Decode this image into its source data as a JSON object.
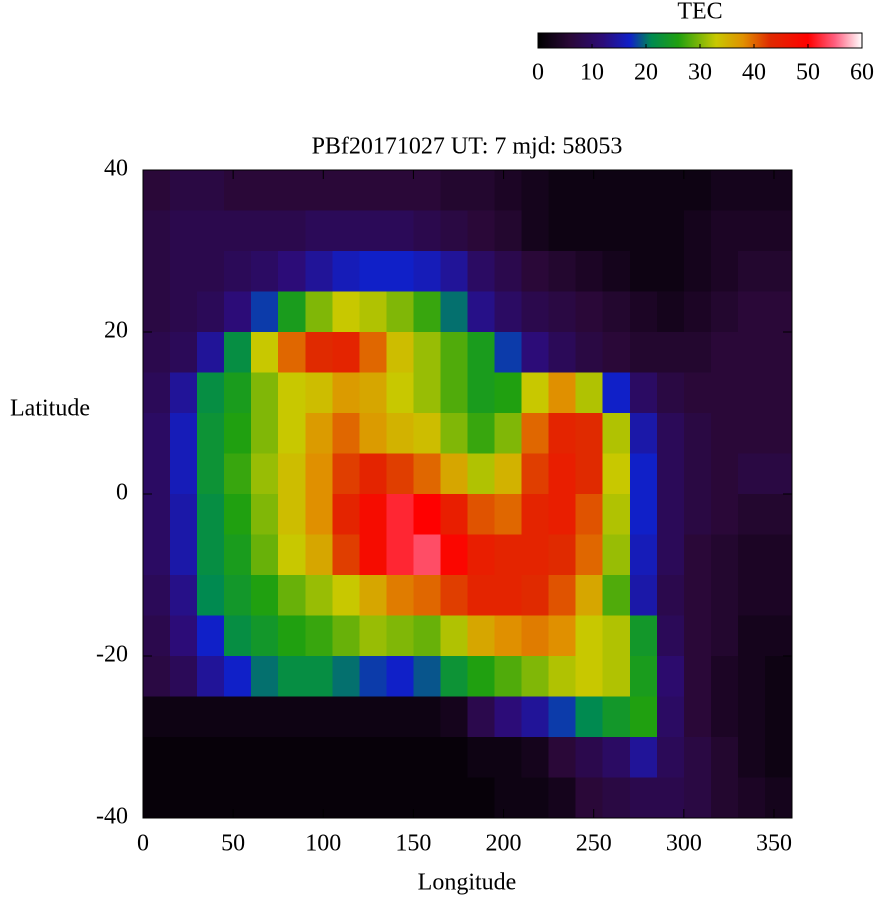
{
  "chart_data": {
    "type": "heatmap",
    "title": "PBf20171027  UT: 7  mjd: 58053",
    "xlabel": "Longitude",
    "ylabel": "Latitude",
    "colorbar_label": "TEC",
    "xlim": [
      0,
      360
    ],
    "xticks": [
      0,
      50,
      100,
      150,
      200,
      250,
      300,
      350
    ],
    "ylim": [
      -40,
      40
    ],
    "yticks": [
      -40,
      -20,
      0,
      20,
      40
    ],
    "zlim": [
      0,
      60
    ],
    "zticks": [
      0,
      10,
      20,
      30,
      40,
      50,
      60
    ],
    "colormap": [
      {
        "value": 0,
        "color": "#000000"
      },
      {
        "value": 6,
        "color": "#2a0838"
      },
      {
        "value": 12,
        "color": "#2c0c78"
      },
      {
        "value": 17,
        "color": "#1020c8"
      },
      {
        "value": 21,
        "color": "#008a50"
      },
      {
        "value": 26,
        "color": "#20a010"
      },
      {
        "value": 33,
        "color": "#c8c800"
      },
      {
        "value": 38,
        "color": "#e09000"
      },
      {
        "value": 43,
        "color": "#e02a00"
      },
      {
        "value": 50,
        "color": "#ff0000"
      },
      {
        "value": 55,
        "color": "#ff6080"
      },
      {
        "value": 60,
        "color": "#ffffff"
      }
    ],
    "x": [
      7.5,
      22.5,
      37.5,
      52.5,
      67.5,
      82.5,
      97.5,
      112.5,
      127.5,
      142.5,
      157.5,
      172.5,
      187.5,
      202.5,
      217.5,
      232.5,
      247.5,
      262.5,
      277.5,
      292.5,
      307.5,
      322.5,
      337.5,
      352.5
    ],
    "y": [
      37.5,
      32.5,
      27.5,
      22.5,
      17.5,
      12.5,
      7.5,
      2.5,
      -2.5,
      -7.5,
      -12.5,
      -17.5,
      -22.5,
      -27.5,
      -32.5,
      -37.5
    ],
    "values": [
      [
        6,
        7,
        7,
        6,
        6,
        6,
        6,
        6,
        6,
        6,
        6,
        5,
        5,
        4,
        3,
        2,
        2,
        2,
        2,
        2,
        2,
        3,
        3,
        3
      ],
      [
        7,
        8,
        8,
        8,
        8,
        8,
        9,
        9,
        9,
        9,
        8,
        7,
        6,
        5,
        3,
        2,
        2,
        2,
        2,
        2,
        3,
        4,
        4,
        4
      ],
      [
        7,
        8,
        8,
        9,
        10,
        12,
        14,
        16,
        17,
        17,
        16,
        14,
        10,
        8,
        6,
        5,
        4,
        3,
        2,
        2,
        3,
        4,
        5,
        5
      ],
      [
        7,
        8,
        9,
        12,
        18,
        25,
        30,
        33,
        32,
        30,
        27,
        20,
        13,
        10,
        8,
        7,
        6,
        5,
        4,
        3,
        4,
        5,
        6,
        6
      ],
      [
        8,
        9,
        14,
        22,
        33,
        40,
        43,
        44,
        40,
        34,
        31,
        28,
        25,
        18,
        12,
        9,
        7,
        6,
        5,
        5,
        5,
        6,
        6,
        6
      ],
      [
        9,
        14,
        22,
        25,
        30,
        33,
        34,
        37,
        36,
        33,
        31,
        28,
        25,
        26,
        33,
        38,
        32,
        17,
        10,
        7,
        6,
        6,
        6,
        6
      ],
      [
        10,
        16,
        23,
        26,
        30,
        33,
        37,
        40,
        37,
        35,
        34,
        30,
        27,
        30,
        40,
        44,
        43,
        32,
        15,
        9,
        7,
        6,
        6,
        6
      ],
      [
        10,
        16,
        23,
        27,
        31,
        34,
        38,
        42,
        44,
        42,
        40,
        36,
        32,
        35,
        42,
        45,
        43,
        33,
        17,
        9,
        7,
        6,
        7,
        7
      ],
      [
        10,
        15,
        22,
        26,
        30,
        34,
        38,
        44,
        48,
        52,
        50,
        45,
        41,
        40,
        44,
        45,
        41,
        32,
        17,
        9,
        7,
        6,
        5,
        5
      ],
      [
        10,
        15,
        22,
        25,
        29,
        33,
        36,
        42,
        48,
        52,
        54,
        49,
        45,
        44,
        44,
        43,
        40,
        31,
        16,
        9,
        6,
        5,
        4,
        4
      ],
      [
        9,
        13,
        21,
        24,
        26,
        29,
        31,
        33,
        36,
        39,
        40,
        42,
        44,
        44,
        43,
        41,
        36,
        28,
        15,
        8,
        6,
        5,
        4,
        4
      ],
      [
        8,
        12,
        17,
        22,
        24,
        26,
        27,
        29,
        31,
        30,
        29,
        32,
        36,
        38,
        39,
        38,
        33,
        32,
        24,
        9,
        6,
        5,
        3,
        3
      ],
      [
        7,
        9,
        14,
        17,
        20,
        22,
        22,
        20,
        18,
        17,
        19,
        23,
        26,
        28,
        30,
        32,
        33,
        32,
        25,
        11,
        6,
        4,
        3,
        2
      ],
      [
        2,
        2,
        2,
        2,
        2,
        2,
        2,
        2,
        2,
        2,
        2,
        3,
        8,
        12,
        14,
        18,
        21,
        24,
        26,
        10,
        6,
        4,
        3,
        2
      ],
      [
        1,
        1,
        1,
        1,
        1,
        1,
        1,
        1,
        1,
        1,
        1,
        1,
        2,
        2,
        3,
        6,
        8,
        10,
        14,
        9,
        7,
        5,
        3,
        2
      ],
      [
        1,
        1,
        1,
        1,
        1,
        1,
        1,
        1,
        1,
        1,
        1,
        1,
        1,
        2,
        2,
        3,
        6,
        7,
        8,
        8,
        7,
        5,
        4,
        3
      ]
    ]
  }
}
